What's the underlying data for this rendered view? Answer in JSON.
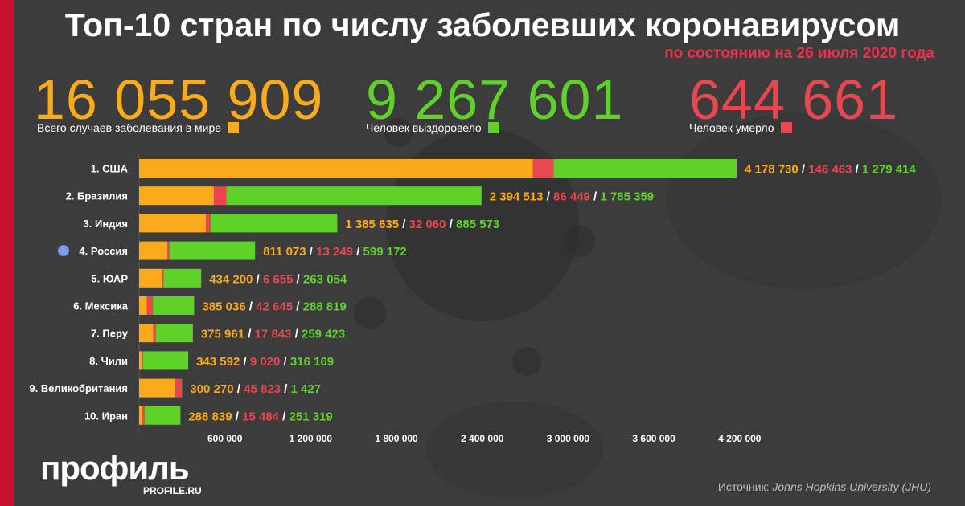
{
  "header": {
    "title": "Топ-10 стран по числу заболевших коронавирусом",
    "subtitle": "по состоянию на 26 июля 2020 года"
  },
  "summary": {
    "total": {
      "value": "16 055 909",
      "label": "Всего случаев заболевания в мире"
    },
    "recovered": {
      "value": "9 267 601",
      "label": "Человек выздоровело"
    },
    "deaths": {
      "value": "644 661",
      "label": "Человек умерло"
    }
  },
  "colors": {
    "active": "#fbaa19",
    "deaths": "#e8474f",
    "recovered": "#5fd22a",
    "background": "#3c3c3c",
    "accent": "#c8102e",
    "russia_marker": "#7b9cf0"
  },
  "chart_data": {
    "type": "bar",
    "orientation": "horizontal",
    "stacked": true,
    "categories": [
      "1. США",
      "2. Бразилия",
      "3. Индия",
      "4. Россия",
      "5. ЮАР",
      "6. Мексика",
      "7. Перу",
      "8. Чили",
      "9. Великобритания",
      "10. Иран"
    ],
    "highlighted_category": "4. Россия",
    "totals": [
      4178730,
      2394513,
      1385635,
      811073,
      434200,
      385036,
      375961,
      343592,
      300270,
      288839
    ],
    "deaths": [
      146463,
      86449,
      32060,
      13249,
      6655,
      42645,
      17843,
      9020,
      45823,
      15484
    ],
    "recovered": [
      1279414,
      1785359,
      885573,
      599172,
      263054,
      288819,
      259423,
      316169,
      1427,
      251319
    ],
    "value_labels": [
      [
        "4 178 730",
        "146 463",
        "1 279 414"
      ],
      [
        "2 394 513",
        "86 449",
        "1 785 359"
      ],
      [
        "1 385 635",
        "32 060",
        "885 573"
      ],
      [
        "811 073",
        "13 249",
        "599 172"
      ],
      [
        "434 200",
        "6 655",
        "263 054"
      ],
      [
        "385 036",
        "42 645",
        "288 819"
      ],
      [
        "375 961",
        "17 843",
        "259 423"
      ],
      [
        "343 592",
        "9 020",
        "316 169"
      ],
      [
        "300 270",
        "45 823",
        "1 427"
      ],
      [
        "288 839",
        "15 484",
        "251 319"
      ]
    ],
    "x_ticks": [
      600000,
      1200000,
      1800000,
      2400000,
      3000000,
      3600000,
      4200000
    ],
    "x_tick_labels": [
      "600 000",
      "1 200 000",
      "1 800 000",
      "2 400 000",
      "3 000 000",
      "3 600 000",
      "4 200 000"
    ],
    "xlim": [
      0,
      4200000
    ],
    "grid": false
  },
  "footer": {
    "logo": "профиль",
    "logo_sub": "PROFILE.RU",
    "source_prefix": "Источник: ",
    "source_name": "Johns Hopkins University (JHU)"
  }
}
